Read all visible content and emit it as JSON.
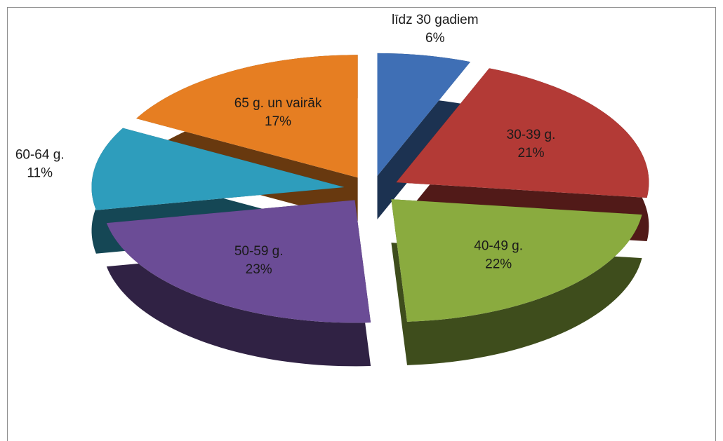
{
  "chart_data": {
    "type": "pie",
    "categories": [
      "līdz 30 gadiem",
      "30-39 g.",
      "40-49 g.",
      "50-59 g.",
      "60-64 g.",
      "65 g. un vairāk"
    ],
    "values": [
      6,
      21,
      22,
      23,
      11,
      17
    ],
    "value_labels": [
      "6%",
      "21%",
      "22%",
      "23%",
      "11%",
      "17%"
    ],
    "colors": [
      "#3f6fb5",
      "#b33a36",
      "#8aab3f",
      "#6b4c96",
      "#2e9dbc",
      "#e67e22"
    ]
  }
}
